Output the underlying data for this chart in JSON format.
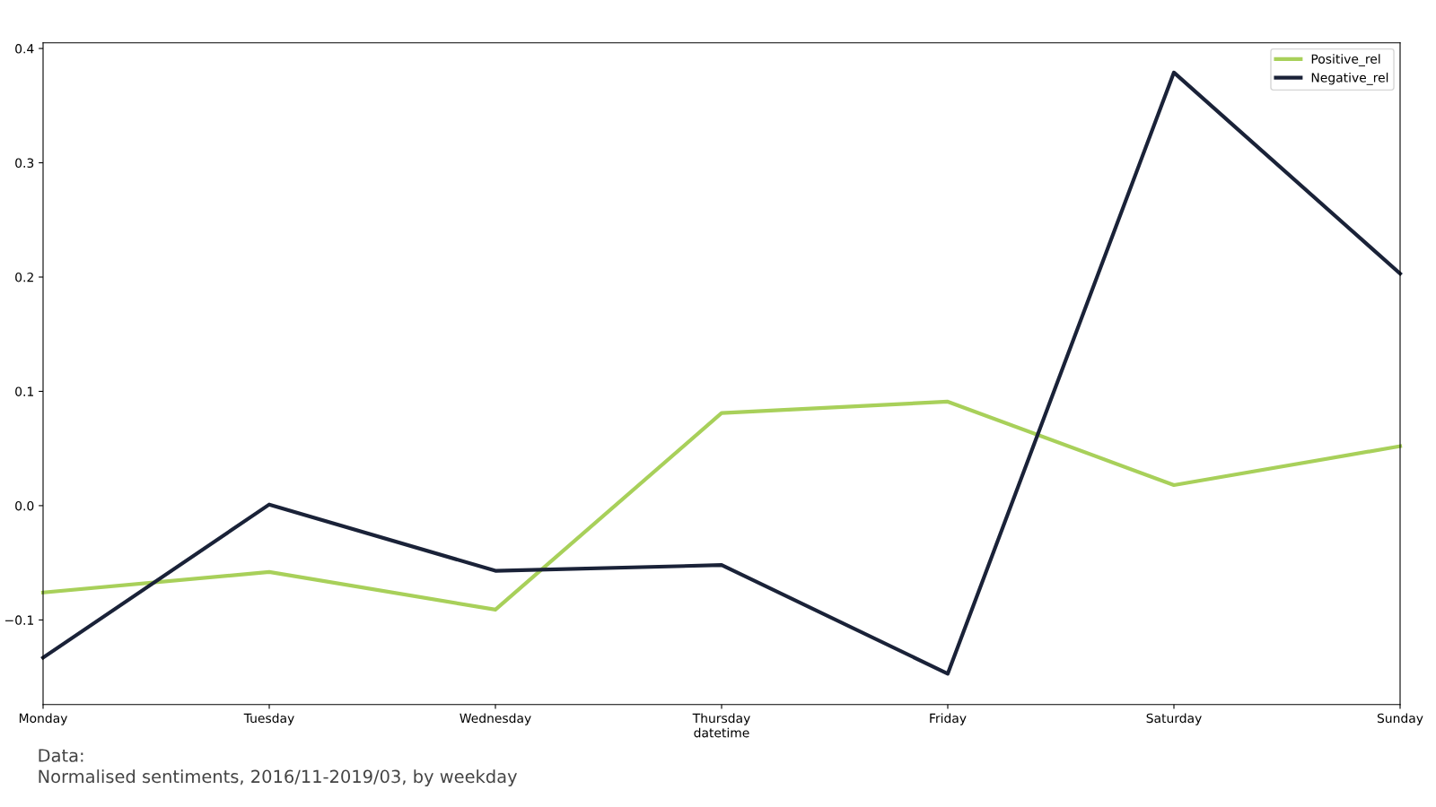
{
  "chart_data": {
    "type": "line",
    "xlabel": "datetime",
    "categories": [
      "Monday",
      "Tuesday",
      "Wednesday",
      "Thursday",
      "Friday",
      "Saturday",
      "Sunday"
    ],
    "series": [
      {
        "name": "Positive_rel",
        "color": "#a8d05a",
        "values": [
          -0.076,
          -0.058,
          -0.091,
          0.081,
          0.091,
          0.018,
          0.052
        ]
      },
      {
        "name": "Negative_rel",
        "color": "#1a2238",
        "values": [
          -0.133,
          0.001,
          -0.057,
          -0.052,
          -0.147,
          0.379,
          0.203
        ]
      }
    ],
    "ylim": [
      -0.174,
      0.405
    ],
    "yticks": [
      {
        "value": -0.1,
        "label": "−0.1"
      },
      {
        "value": 0.0,
        "label": "0.0"
      },
      {
        "value": 0.1,
        "label": "0.1"
      },
      {
        "value": 0.2,
        "label": "0.2"
      },
      {
        "value": 0.3,
        "label": "0.3"
      },
      {
        "value": 0.4,
        "label": "0.4"
      }
    ],
    "grid": false,
    "legend": "top right",
    "marker": "none",
    "line_style": "solid",
    "annotations": [
      "Data:",
      "Normalised sentiments, 2016/11-2019/03, by weekday"
    ]
  }
}
